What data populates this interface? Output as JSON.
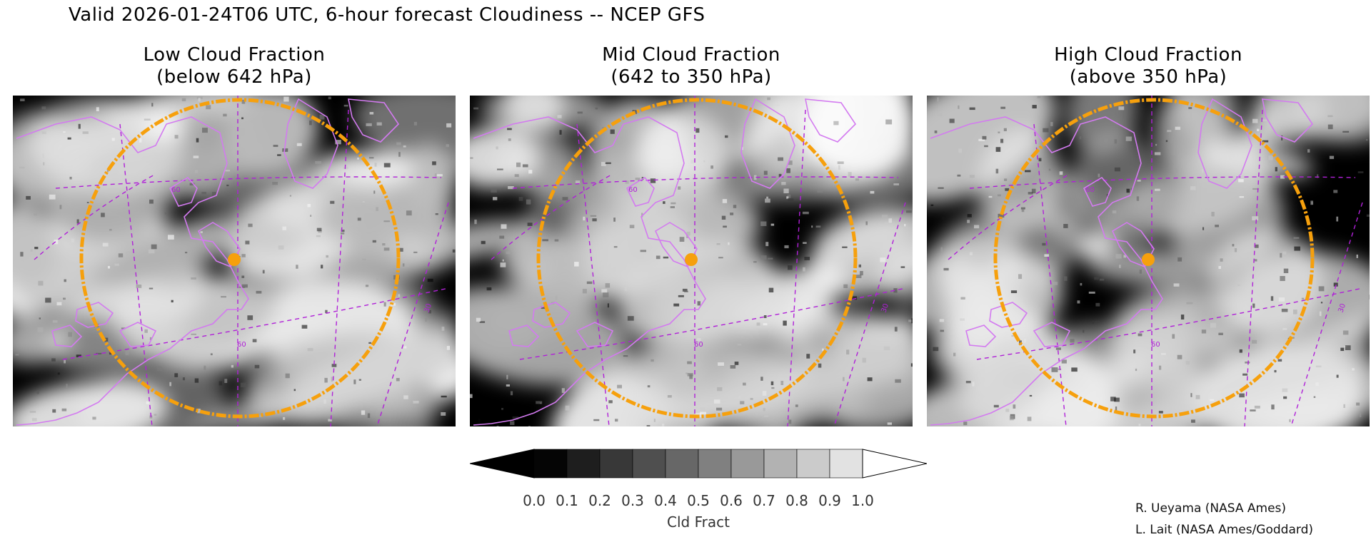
{
  "title": "Valid 2026-01-24T06 UTC, 6-hour forecast Cloudiness -- NCEP GFS",
  "panels": [
    {
      "line1": "Low Cloud Fraction",
      "line2": "(below 642 hPa)",
      "seed": 3,
      "fill": 0.62
    },
    {
      "line1": "Mid Cloud Fraction",
      "line2": "(642 to 350 hPa)",
      "seed": 11,
      "fill": 0.48
    },
    {
      "line1": "High Cloud Fraction",
      "line2": "(above 350 hPa)",
      "seed": 29,
      "fill": 0.4
    }
  ],
  "map_labels": [
    "60",
    "60",
    "30"
  ],
  "colorbar": {
    "title": "Cld Fract",
    "ticks": [
      "0.0",
      "0.1",
      "0.2",
      "0.3",
      "0.4",
      "0.5",
      "0.6",
      "0.7",
      "0.8",
      "0.9",
      "1.0"
    ],
    "colors": [
      "#050505",
      "#1e1e1e",
      "#383838",
      "#4f4f4f",
      "#676767",
      "#808080",
      "#999999",
      "#b2b2b2",
      "#cbcbcb",
      "#e2e2e2"
    ],
    "under_color": "#000000",
    "over_color": "#ffffff"
  },
  "colors": {
    "coastline": "#d37af0",
    "grid": "#b020d8",
    "ring": "#f6a00d",
    "marker": "#f6a00d"
  },
  "credits": {
    "line1": "R. Ueyama (NASA Ames)",
    "line2": "L. Lait (NASA Ames/Goddard)"
  }
}
